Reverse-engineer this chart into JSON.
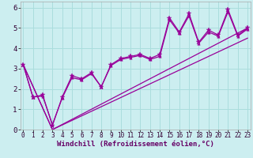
{
  "xlabel": "Windchill (Refroidissement éolien,°C)",
  "background_color": "#cceef0",
  "grid_color": "#aadddd",
  "line_color": "#990099",
  "x_ticks": [
    0,
    1,
    2,
    3,
    4,
    5,
    6,
    7,
    8,
    9,
    10,
    11,
    12,
    13,
    14,
    15,
    16,
    17,
    18,
    19,
    20,
    21,
    22,
    23
  ],
  "y_ticks": [
    0,
    1,
    2,
    3,
    4,
    5,
    6
  ],
  "xlim": [
    -0.3,
    23.3
  ],
  "ylim": [
    0,
    6.3
  ],
  "line1_x": [
    0,
    1,
    2,
    3,
    4,
    5,
    6,
    7,
    8,
    9,
    10,
    11,
    12,
    13,
    14,
    15,
    16,
    17,
    18,
    19,
    20,
    21,
    22,
    23
  ],
  "line1_y": [
    3.2,
    1.6,
    1.7,
    0.2,
    1.6,
    2.65,
    2.5,
    2.8,
    2.1,
    3.2,
    3.5,
    3.6,
    3.7,
    3.5,
    3.7,
    5.5,
    4.8,
    5.7,
    4.3,
    4.9,
    4.65,
    5.9,
    4.65,
    5.0
  ],
  "line2_x": [
    0,
    1,
    2,
    3,
    4,
    5,
    6,
    7,
    8,
    9,
    10,
    11,
    12,
    13,
    14,
    15,
    16,
    17,
    18,
    19,
    20,
    21,
    22,
    23
  ],
  "line2_y": [
    3.2,
    1.6,
    1.65,
    0.25,
    1.55,
    2.55,
    2.45,
    2.75,
    2.1,
    3.15,
    3.45,
    3.55,
    3.65,
    3.45,
    3.6,
    5.4,
    4.75,
    5.6,
    4.25,
    4.8,
    4.6,
    5.8,
    4.6,
    4.95
  ],
  "line3_x": [
    0,
    3,
    23
  ],
  "line3_y": [
    3.2,
    0.0,
    5.0
  ],
  "line4_x": [
    0,
    3,
    23
  ],
  "line4_y": [
    3.2,
    0.0,
    4.5
  ],
  "xlabel_color": "#660066",
  "xlabel_fontsize": 6.5,
  "tick_fontsize": 5.5,
  "ytick_fontsize": 6.5
}
